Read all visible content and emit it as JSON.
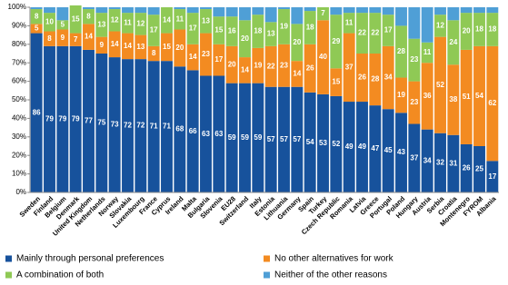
{
  "chart_data": {
    "type": "stacked_bar",
    "categories": [
      "Sweden",
      "Finland",
      "Belgium",
      "Denmark",
      "United Kingdom",
      "Netherlands",
      "Norway",
      "Slovakia",
      "Luxembourg",
      "France",
      "Cyprus",
      "Ireland",
      "Malta",
      "Bulgaria",
      "Slovenia",
      "EU28",
      "Switzerland",
      "Italy",
      "Estonia",
      "Lithuania",
      "Germany",
      "Spain",
      "Turkey",
      "Czech Republic",
      "Romania",
      "Latvia",
      "Greece",
      "Portugal",
      "Poland",
      "Hungary",
      "Austria",
      "Serbia",
      "Croatia",
      "Montenegro",
      "FYROM",
      "Albania"
    ],
    "series": [
      {
        "name": "Mainly through personal preferences",
        "color": "#17529c",
        "show_labels": true,
        "values": [
          86,
          79,
          79,
          79,
          77,
          75,
          73,
          72,
          72,
          71,
          71,
          68,
          66,
          63,
          63,
          59,
          59,
          59,
          57,
          57,
          57,
          54,
          53,
          52,
          49,
          49,
          47,
          45,
          43,
          37,
          34,
          32,
          31,
          26,
          25,
          17
        ]
      },
      {
        "name": "No other alternatives for work",
        "color": "#f38b21",
        "show_labels": true,
        "values": [
          5,
          8,
          9,
          7,
          14,
          9,
          14,
          14,
          13,
          8,
          15,
          20,
          14,
          23,
          17,
          20,
          14,
          19,
          22,
          23,
          14,
          26,
          40,
          15,
          37,
          26,
          28,
          34,
          19,
          23,
          36,
          52,
          38,
          51,
          54,
          62
        ]
      },
      {
        "name": "A combination of both",
        "color": "#8fc955",
        "show_labels": true,
        "values": [
          8,
          10,
          5,
          15,
          8,
          13,
          12,
          11,
          12,
          17,
          14,
          11,
          17,
          13,
          15,
          16,
          20,
          18,
          13,
          19,
          20,
          18,
          7,
          29,
          11,
          22,
          22,
          17,
          28,
          23,
          11,
          12,
          24,
          20,
          18,
          18
        ]
      },
      {
        "name": "Neither of the other reasons",
        "color": "#4f9fd6",
        "show_labels": false,
        "values": [
          1,
          3,
          7,
          0,
          1,
          3,
          1,
          3,
          3,
          4,
          0,
          1,
          3,
          1,
          5,
          5,
          7,
          4,
          8,
          1,
          9,
          2,
          0,
          4,
          3,
          3,
          3,
          4,
          10,
          17,
          19,
          4,
          7,
          3,
          3,
          3
        ]
      }
    ],
    "ylim": [
      0,
      100
    ],
    "yticks": [
      {
        "value": 0,
        "label": "0%"
      },
      {
        "value": 10,
        "label": "10%"
      },
      {
        "value": 20,
        "label": "20%"
      },
      {
        "value": 30,
        "label": "30%"
      },
      {
        "value": 40,
        "label": "40%"
      },
      {
        "value": 50,
        "label": "50%"
      },
      {
        "value": 60,
        "label": "60%"
      },
      {
        "value": 70,
        "label": "70%"
      },
      {
        "value": 80,
        "label": "80%"
      },
      {
        "value": 90,
        "label": "90%"
      },
      {
        "value": 100,
        "label": "100%"
      }
    ]
  }
}
